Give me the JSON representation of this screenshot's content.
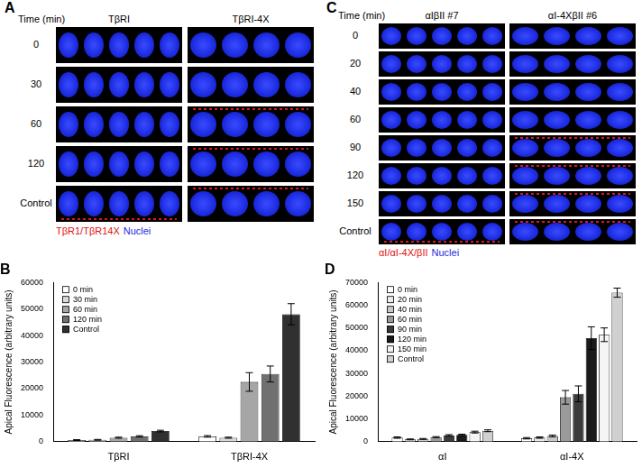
{
  "panels": [
    {
      "label": "A",
      "row_header": "Time (min)",
      "columns": [
        "TβRI",
        "TβRI-4X"
      ],
      "rows": [
        "0",
        "30",
        "60",
        "120",
        "Control"
      ],
      "legend": [
        {
          "name": "TβR1/TβR14X",
          "color": "#e01010"
        },
        {
          "name": "Nuclei",
          "color": "#1c2be0"
        }
      ]
    },
    {
      "label": "C",
      "row_header": "Time (min)",
      "columns": [
        "αIβII #7",
        "αI-4XβII #6"
      ],
      "rows": [
        "0",
        "20",
        "40",
        "60",
        "90",
        "120",
        "150",
        "Control"
      ],
      "legend": [
        {
          "name": "αI/αI-4X/βII",
          "color": "#e01010"
        },
        {
          "name": "Nuclei",
          "color": "#1c2be0"
        }
      ]
    }
  ],
  "chart_data": [
    {
      "type": "bar",
      "title": "B",
      "y_label": "Apical Fluorescence (arbitrary units)",
      "categories": [
        "TβRI",
        "TβRI-4X"
      ],
      "series": [
        {
          "name": "0 min",
          "color": "#ffffff",
          "values": [
            600,
            2000
          ],
          "errors": [
            150,
            300
          ]
        },
        {
          "name": "30 min",
          "color": "#d9d9d9",
          "values": [
            700,
            1500
          ],
          "errors": [
            150,
            200
          ]
        },
        {
          "name": "60 min",
          "color": "#a6a6a6",
          "values": [
            1500,
            22500
          ],
          "errors": [
            200,
            3500
          ]
        },
        {
          "name": "120 min",
          "color": "#707070",
          "values": [
            2000,
            25500
          ],
          "errors": [
            250,
            3000
          ]
        },
        {
          "name": "Control",
          "color": "#303030",
          "values": [
            4000,
            48000
          ],
          "errors": [
            300,
            4000
          ]
        }
      ],
      "ylim": [
        0,
        60000
      ],
      "yticks": [
        0,
        10000,
        20000,
        30000,
        40000,
        50000,
        60000
      ],
      "grid": false,
      "legend": "top-left"
    },
    {
      "type": "bar",
      "title": "D",
      "y_label": "Apical Fluorescence (arbitrary units)",
      "categories": [
        "αI",
        "αI-4X"
      ],
      "series": [
        {
          "name": "0 min",
          "color": "#ffffff",
          "values": [
            1800,
            1500
          ],
          "errors": [
            300,
            300
          ]
        },
        {
          "name": "20 min",
          "color": "#ececec",
          "values": [
            1000,
            1800
          ],
          "errors": [
            200,
            300
          ]
        },
        {
          "name": "40 min",
          "color": "#c8c8c8",
          "values": [
            1200,
            2500
          ],
          "errors": [
            200,
            400
          ]
        },
        {
          "name": "60 min",
          "color": "#9a9a9a",
          "values": [
            2000,
            19500
          ],
          "errors": [
            200,
            3000
          ]
        },
        {
          "name": "90 min",
          "color": "#3a3a3a",
          "values": [
            2800,
            21000
          ],
          "errors": [
            300,
            3500
          ]
        },
        {
          "name": "120 min",
          "color": "#1a1a1a",
          "values": [
            3000,
            45500
          ],
          "errors": [
            300,
            5000
          ]
        },
        {
          "name": "150 min",
          "color": "#f5f5f5",
          "values": [
            4200,
            47000
          ],
          "errors": [
            400,
            3000
          ]
        },
        {
          "name": "Control",
          "color": "#d0d0d0",
          "values": [
            4800,
            65500
          ],
          "errors": [
            400,
            2000
          ]
        }
      ],
      "ylim": [
        0,
        70000
      ],
      "yticks": [
        0,
        10000,
        20000,
        30000,
        40000,
        50000,
        60000,
        70000
      ],
      "grid": false,
      "legend": "top-left"
    }
  ]
}
